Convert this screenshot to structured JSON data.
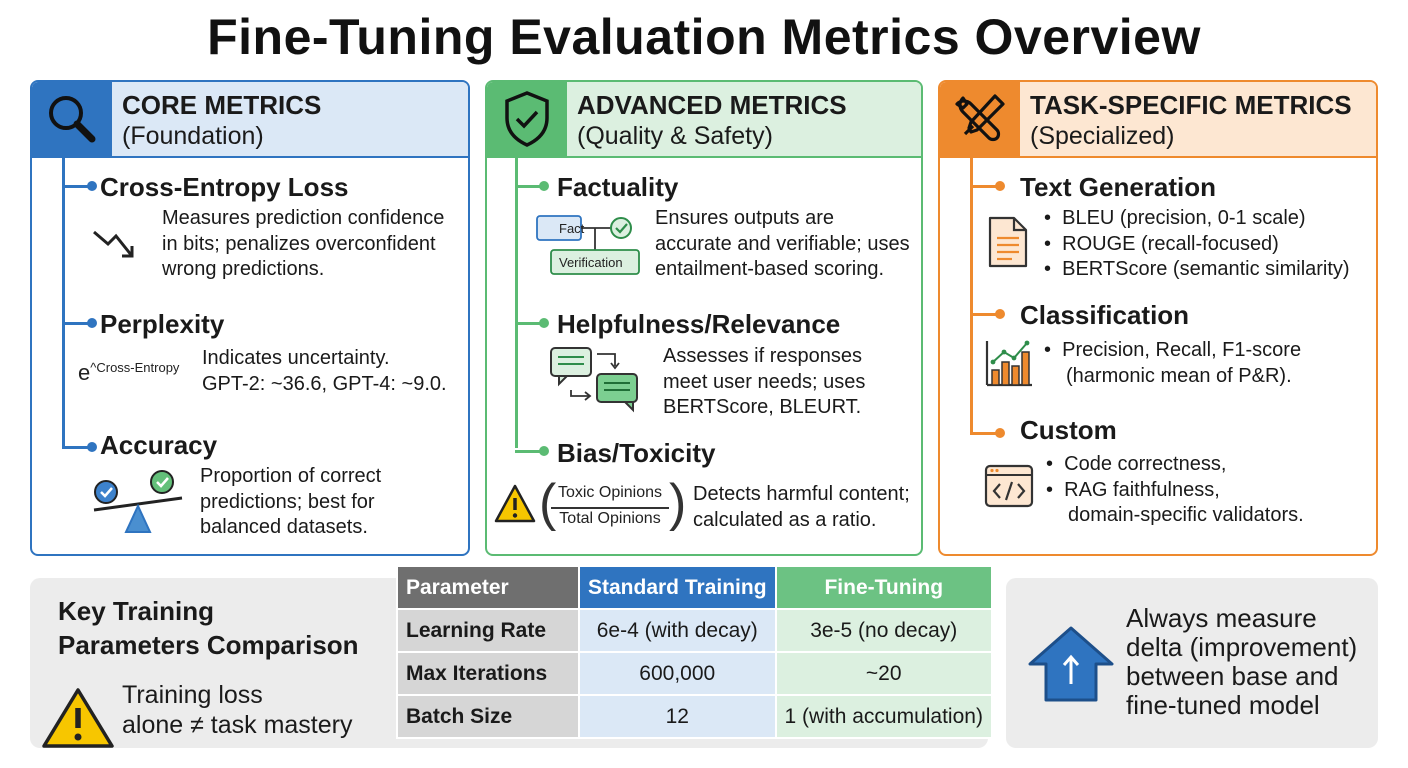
{
  "title": "Fine-Tuning Evaluation Metrics Overview",
  "core": {
    "title": "CORE METRICS",
    "subtitle": "(Foundation)",
    "icon": "magnifier-icon",
    "metrics": [
      {
        "name": "Cross-Entropy Loss",
        "icon": "trend-down-icon",
        "desc": [
          "Measures prediction confidence",
          "in bits; penalizes overconfident",
          "wrong predictions."
        ]
      },
      {
        "name": "Perplexity",
        "formula_base": "e",
        "formula_exp": "^Cross-Entropy",
        "desc": [
          "Indicates uncertainty.",
          "GPT-2: ~36.6, GPT-4: ~9.0."
        ]
      },
      {
        "name": "Accuracy",
        "icon": "balance-scale-icon",
        "desc": [
          "Proportion of correct",
          "predictions; best for",
          "balanced datasets."
        ]
      }
    ]
  },
  "advanced": {
    "title": "ADVANCED METRICS",
    "subtitle": "(Quality & Safety)",
    "icon": "shield-check-icon",
    "metrics": [
      {
        "name": "Factuality",
        "diagram_labels": [
          "Fact",
          "Verification"
        ],
        "desc": [
          "Ensures outputs are",
          "accurate and verifiable; uses",
          "entailment-based scoring."
        ]
      },
      {
        "name": "Helpfulness/Relevance",
        "icon": "chat-bubbles-icon",
        "desc": [
          "Assesses if responses",
          "meet user needs; uses",
          "BERTScore, BLEURT."
        ]
      },
      {
        "name": "Bias/Toxicity",
        "icon": "warning-icon",
        "fraction": {
          "numerator": "Toxic Opinions",
          "denominator": "Total Opinions"
        },
        "desc": [
          "Detects harmful content;",
          "calculated as a ratio."
        ]
      }
    ]
  },
  "task": {
    "title": "TASK-SPECIFIC METRICS",
    "subtitle": "(Specialized)",
    "icon": "tools-icon",
    "metrics": [
      {
        "name": "Text Generation",
        "icon": "document-icon",
        "bullets": [
          "BLEU (precision, 0-1 scale)",
          "ROUGE (recall-focused)",
          "BERTScore (semantic similarity)"
        ]
      },
      {
        "name": "Classification",
        "icon": "bar-chart-icon",
        "bullets": [
          "Precision, Recall, F1-score"
        ],
        "continuation": "(harmonic mean of P&R)."
      },
      {
        "name": "Custom",
        "icon": "code-window-icon",
        "bullets": [
          "Code correctness,",
          "RAG faithfulness,"
        ],
        "continuation": "domain-specific validators."
      }
    ]
  },
  "params": {
    "title_lines": [
      "Key Training",
      "Parameters Comparison"
    ],
    "warning_lines": [
      "Training loss",
      "alone ≠ task mastery"
    ],
    "headers": [
      "Parameter",
      "Standard Training",
      "Fine-Tuning"
    ],
    "rows": [
      [
        "Learning Rate",
        "6e-4 (with decay)",
        "3e-5 (no decay)"
      ],
      [
        "Max Iterations",
        "600,000",
        "~20"
      ],
      [
        "Batch Size",
        "12",
        "1 (with accumulation)"
      ]
    ]
  },
  "tip": {
    "icon": "arrow-up-icon",
    "lines": [
      "Always measure",
      "delta (improvement)",
      "between base and",
      "fine-tuned model"
    ]
  },
  "colors": {
    "core": "#2f74c0",
    "advanced": "#5bbb73",
    "task": "#ee8a2e",
    "warning": "#f7c600"
  }
}
